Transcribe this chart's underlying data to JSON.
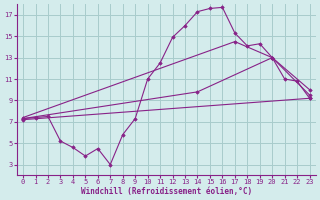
{
  "background_color": "#d4ecec",
  "grid_color": "#a8cccc",
  "line_color": "#882288",
  "marker_color": "#882288",
  "xlabel": "Windchill (Refroidissement éolien,°C)",
  "xlabel_color": "#882288",
  "xlim": [
    -0.5,
    23.5
  ],
  "ylim": [
    2,
    18
  ],
  "yticks": [
    3,
    5,
    7,
    9,
    11,
    13,
    15,
    17
  ],
  "xticks": [
    0,
    1,
    2,
    3,
    4,
    5,
    6,
    7,
    8,
    9,
    10,
    11,
    12,
    13,
    14,
    15,
    16,
    17,
    18,
    19,
    20,
    21,
    22,
    23
  ],
  "series": [
    {
      "x": [
        0,
        1,
        2,
        3,
        4,
        5,
        6,
        7,
        8,
        9,
        10,
        11,
        12,
        13,
        14,
        15,
        16,
        17,
        18,
        19,
        20,
        21,
        22,
        23
      ],
      "y": [
        7.3,
        7.4,
        7.5,
        5.2,
        4.6,
        3.8,
        4.5,
        3.0,
        5.8,
        7.3,
        11.0,
        12.5,
        14.9,
        16.0,
        17.3,
        17.6,
        17.7,
        15.3,
        14.1,
        14.3,
        13.0,
        11.0,
        10.8,
        9.2
      ]
    },
    {
      "x": [
        0,
        23
      ],
      "y": [
        7.2,
        9.2
      ]
    },
    {
      "x": [
        0,
        14,
        20,
        23
      ],
      "y": [
        7.3,
        9.8,
        13.0,
        9.5
      ]
    },
    {
      "x": [
        0,
        17,
        20,
        23
      ],
      "y": [
        7.4,
        14.5,
        13.0,
        10.0
      ]
    }
  ]
}
